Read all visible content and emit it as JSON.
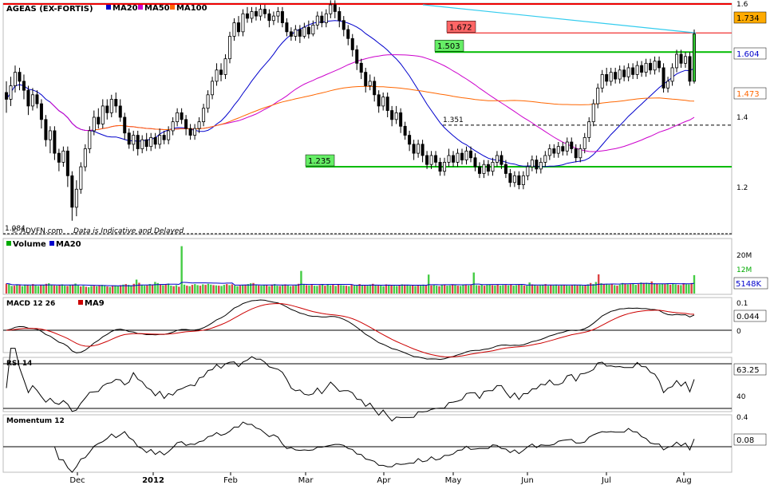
{
  "chart_data": [
    {
      "type": "candlestick",
      "panel": "price",
      "title": "AGEAS (EX-FORTIS)",
      "legend": [
        {
          "name": "MA20",
          "color": "#0000cc"
        },
        {
          "name": "MA50",
          "color": "#cc00cc"
        },
        {
          "name": "MA100",
          "color": "#ff6600"
        }
      ],
      "ylim": [
        0.99,
        1.6
      ],
      "yticks": [
        "1.6",
        "1.4",
        "1.2"
      ],
      "xticks": [
        "Dec",
        "2012",
        "Feb",
        "Mar",
        "Apr",
        "May",
        "Jun",
        "Jul",
        "Aug"
      ],
      "low_label": "1.084",
      "last_price": {
        "value": "1.734",
        "color": "#ffaa00"
      },
      "ma20_value": {
        "value": "1.604",
        "color": "#0000cc"
      },
      "ma100_value": {
        "value": "1.473",
        "color": "#ff6600"
      },
      "levels": [
        {
          "label": "1.672",
          "value": 1.548,
          "style": "red"
        },
        {
          "label": "1.503",
          "value": 1.478,
          "style": "green"
        },
        {
          "label": "1.235",
          "value": 1.283,
          "style": "green"
        },
        {
          "label": "1.351",
          "value": 1.335,
          "style": "dashed"
        }
      ],
      "trendline": {
        "from_value": 1.598,
        "to_value": 1.551
      },
      "watermark": "© ADVFN.com",
      "note": "Data is Indicative and Delayed",
      "candles": [
        [
          0.61,
          0.58,
          0.66,
          0.52
        ],
        [
          0.58,
          0.64,
          0.68,
          0.55
        ],
        [
          0.64,
          0.7,
          0.73,
          0.61
        ],
        [
          0.7,
          0.66,
          0.72,
          0.62
        ],
        [
          0.66,
          0.62,
          0.69,
          0.58
        ],
        [
          0.62,
          0.55,
          0.64,
          0.51
        ],
        [
          0.55,
          0.6,
          0.63,
          0.53
        ],
        [
          0.6,
          0.56,
          0.62,
          0.54
        ],
        [
          0.56,
          0.49,
          0.58,
          0.45
        ],
        [
          0.49,
          0.4,
          0.51,
          0.37
        ],
        [
          0.4,
          0.44,
          0.46,
          0.34
        ],
        [
          0.44,
          0.34,
          0.46,
          0.31
        ],
        [
          0.34,
          0.3,
          0.36,
          0.26
        ],
        [
          0.3,
          0.35,
          0.37,
          0.28
        ],
        [
          0.35,
          0.24,
          0.37,
          0.19
        ],
        [
          0.24,
          0.1,
          0.26,
          0.04
        ],
        [
          0.1,
          0.18,
          0.22,
          0.06
        ],
        [
          0.18,
          0.28,
          0.3,
          0.16
        ],
        [
          0.28,
          0.36,
          0.38,
          0.26
        ],
        [
          0.36,
          0.44,
          0.46,
          0.34
        ],
        [
          0.44,
          0.5,
          0.53,
          0.42
        ],
        [
          0.5,
          0.47,
          0.54,
          0.45
        ],
        [
          0.47,
          0.55,
          0.58,
          0.45
        ],
        [
          0.55,
          0.52,
          0.58,
          0.49
        ],
        [
          0.52,
          0.58,
          0.6,
          0.5
        ],
        [
          0.58,
          0.55,
          0.61,
          0.52
        ],
        [
          0.55,
          0.5,
          0.58,
          0.48
        ],
        [
          0.5,
          0.43,
          0.52,
          0.4
        ],
        [
          0.43,
          0.38,
          0.45,
          0.36
        ],
        [
          0.38,
          0.42,
          0.44,
          0.35
        ],
        [
          0.42,
          0.36,
          0.44,
          0.33
        ],
        [
          0.36,
          0.4,
          0.42,
          0.34
        ],
        [
          0.4,
          0.37,
          0.43,
          0.35
        ],
        [
          0.37,
          0.41,
          0.43,
          0.35
        ],
        [
          0.41,
          0.38,
          0.43,
          0.36
        ],
        [
          0.38,
          0.42,
          0.45,
          0.36
        ],
        [
          0.42,
          0.4,
          0.44,
          0.38
        ],
        [
          0.4,
          0.44,
          0.46,
          0.38
        ],
        [
          0.44,
          0.48,
          0.5,
          0.42
        ],
        [
          0.48,
          0.52,
          0.54,
          0.46
        ],
        [
          0.52,
          0.49,
          0.54,
          0.47
        ],
        [
          0.49,
          0.45,
          0.51,
          0.42
        ],
        [
          0.45,
          0.42,
          0.47,
          0.4
        ],
        [
          0.42,
          0.45,
          0.47,
          0.4
        ],
        [
          0.45,
          0.48,
          0.5,
          0.43
        ],
        [
          0.48,
          0.54,
          0.56,
          0.46
        ],
        [
          0.54,
          0.6,
          0.62,
          0.52
        ],
        [
          0.6,
          0.66,
          0.68,
          0.58
        ],
        [
          0.66,
          0.71,
          0.74,
          0.64
        ],
        [
          0.71,
          0.69,
          0.74,
          0.66
        ],
        [
          0.69,
          0.76,
          0.78,
          0.67
        ],
        [
          0.76,
          0.86,
          0.88,
          0.74
        ],
        [
          0.86,
          0.92,
          0.94,
          0.84
        ],
        [
          0.92,
          0.88,
          0.95,
          0.86
        ],
        [
          0.88,
          0.96,
          0.98,
          0.86
        ],
        [
          0.96,
          0.94,
          0.99,
          0.92
        ],
        [
          0.94,
          0.97,
          0.99,
          0.92
        ],
        [
          0.97,
          0.95,
          0.99,
          0.93
        ],
        [
          0.95,
          0.98,
          1.0,
          0.93
        ],
        [
          0.98,
          0.96,
          1.0,
          0.94
        ],
        [
          0.96,
          0.93,
          0.98,
          0.9
        ],
        [
          0.93,
          0.95,
          0.97,
          0.91
        ],
        [
          0.95,
          0.97,
          0.99,
          0.92
        ],
        [
          0.97,
          0.92,
          0.99,
          0.9
        ],
        [
          0.92,
          0.88,
          0.94,
          0.86
        ],
        [
          0.88,
          0.86,
          0.9,
          0.84
        ],
        [
          0.86,
          0.89,
          0.91,
          0.84
        ],
        [
          0.89,
          0.86,
          0.91,
          0.83
        ],
        [
          0.86,
          0.9,
          0.92,
          0.85
        ],
        [
          0.9,
          0.87,
          0.93,
          0.85
        ],
        [
          0.87,
          0.91,
          0.93,
          0.86
        ],
        [
          0.91,
          0.95,
          0.97,
          0.89
        ],
        [
          0.95,
          0.92,
          0.97,
          0.9
        ],
        [
          0.92,
          0.96,
          0.98,
          0.9
        ],
        [
          0.96,
          1.0,
          1.02,
          0.94
        ],
        [
          1.0,
          0.97,
          1.02,
          0.94
        ],
        [
          0.97,
          0.93,
          0.99,
          0.9
        ],
        [
          0.93,
          0.89,
          0.95,
          0.86
        ],
        [
          0.89,
          0.85,
          0.91,
          0.82
        ],
        [
          0.85,
          0.8,
          0.87,
          0.77
        ],
        [
          0.8,
          0.74,
          0.82,
          0.71
        ],
        [
          0.74,
          0.7,
          0.76,
          0.67
        ],
        [
          0.7,
          0.64,
          0.72,
          0.61
        ],
        [
          0.64,
          0.66,
          0.69,
          0.62
        ],
        [
          0.66,
          0.6,
          0.68,
          0.57
        ],
        [
          0.6,
          0.55,
          0.62,
          0.52
        ],
        [
          0.55,
          0.59,
          0.61,
          0.53
        ],
        [
          0.59,
          0.53,
          0.61,
          0.5
        ],
        [
          0.53,
          0.49,
          0.55,
          0.46
        ],
        [
          0.49,
          0.52,
          0.55,
          0.47
        ],
        [
          0.52,
          0.46,
          0.54,
          0.43
        ],
        [
          0.46,
          0.42,
          0.48,
          0.4
        ],
        [
          0.42,
          0.38,
          0.44,
          0.35
        ],
        [
          0.38,
          0.34,
          0.4,
          0.31
        ],
        [
          0.34,
          0.38,
          0.4,
          0.32
        ],
        [
          0.38,
          0.33,
          0.4,
          0.3
        ],
        [
          0.33,
          0.29,
          0.35,
          0.27
        ],
        [
          0.29,
          0.33,
          0.35,
          0.27
        ],
        [
          0.33,
          0.3,
          0.35,
          0.28
        ],
        [
          0.3,
          0.26,
          0.32,
          0.24
        ],
        [
          0.26,
          0.3,
          0.32,
          0.24
        ],
        [
          0.3,
          0.33,
          0.36,
          0.28
        ],
        [
          0.33,
          0.3,
          0.35,
          0.28
        ],
        [
          0.3,
          0.34,
          0.36,
          0.28
        ],
        [
          0.34,
          0.31,
          0.36,
          0.29
        ],
        [
          0.31,
          0.35,
          0.37,
          0.29
        ],
        [
          0.35,
          0.32,
          0.37,
          0.3
        ],
        [
          0.32,
          0.28,
          0.34,
          0.26
        ],
        [
          0.28,
          0.25,
          0.3,
          0.23
        ],
        [
          0.25,
          0.29,
          0.31,
          0.23
        ],
        [
          0.29,
          0.26,
          0.31,
          0.24
        ],
        [
          0.26,
          0.3,
          0.32,
          0.24
        ],
        [
          0.3,
          0.33,
          0.35,
          0.28
        ],
        [
          0.33,
          0.29,
          0.35,
          0.27
        ],
        [
          0.29,
          0.25,
          0.31,
          0.23
        ],
        [
          0.25,
          0.21,
          0.27,
          0.19
        ],
        [
          0.21,
          0.24,
          0.26,
          0.19
        ],
        [
          0.24,
          0.2,
          0.26,
          0.18
        ],
        [
          0.2,
          0.24,
          0.26,
          0.18
        ],
        [
          0.24,
          0.28,
          0.3,
          0.22
        ],
        [
          0.28,
          0.31,
          0.33,
          0.26
        ],
        [
          0.31,
          0.27,
          0.33,
          0.25
        ],
        [
          0.27,
          0.3,
          0.32,
          0.25
        ],
        [
          0.3,
          0.33,
          0.35,
          0.28
        ],
        [
          0.33,
          0.36,
          0.38,
          0.31
        ],
        [
          0.36,
          0.34,
          0.38,
          0.32
        ],
        [
          0.34,
          0.37,
          0.39,
          0.32
        ],
        [
          0.37,
          0.35,
          0.39,
          0.33
        ],
        [
          0.35,
          0.39,
          0.41,
          0.33
        ],
        [
          0.39,
          0.36,
          0.41,
          0.34
        ],
        [
          0.36,
          0.32,
          0.38,
          0.3
        ],
        [
          0.32,
          0.36,
          0.38,
          0.3
        ],
        [
          0.36,
          0.41,
          0.43,
          0.34
        ],
        [
          0.41,
          0.48,
          0.5,
          0.39
        ],
        [
          0.48,
          0.56,
          0.58,
          0.46
        ],
        [
          0.56,
          0.63,
          0.65,
          0.54
        ],
        [
          0.63,
          0.69,
          0.71,
          0.61
        ],
        [
          0.69,
          0.66,
          0.72,
          0.64
        ],
        [
          0.66,
          0.7,
          0.72,
          0.64
        ],
        [
          0.7,
          0.67,
          0.72,
          0.65
        ],
        [
          0.67,
          0.71,
          0.73,
          0.65
        ],
        [
          0.71,
          0.68,
          0.73,
          0.66
        ],
        [
          0.68,
          0.72,
          0.74,
          0.66
        ],
        [
          0.72,
          0.69,
          0.74,
          0.67
        ],
        [
          0.69,
          0.73,
          0.75,
          0.67
        ],
        [
          0.73,
          0.7,
          0.75,
          0.68
        ],
        [
          0.7,
          0.74,
          0.76,
          0.68
        ],
        [
          0.74,
          0.71,
          0.76,
          0.69
        ],
        [
          0.71,
          0.75,
          0.77,
          0.69
        ],
        [
          0.75,
          0.72,
          0.77,
          0.7
        ],
        [
          0.72,
          0.63,
          0.74,
          0.61
        ],
        [
          0.63,
          0.66,
          0.68,
          0.61
        ],
        [
          0.66,
          0.72,
          0.74,
          0.64
        ],
        [
          0.72,
          0.78,
          0.8,
          0.7
        ],
        [
          0.78,
          0.74,
          0.8,
          0.72
        ],
        [
          0.74,
          0.77,
          0.79,
          0.72
        ],
        [
          0.77,
          0.66,
          0.79,
          0.64
        ],
        [
          0.66,
          0.87,
          0.89,
          0.65
        ]
      ]
    },
    {
      "type": "bar",
      "panel": "volume",
      "title": "Volume",
      "legend": [
        {
          "name": "Volume",
          "color": "#00aa00"
        },
        {
          "name": "MA20",
          "color": "#0000cc"
        }
      ],
      "ylim": [
        0,
        20
      ],
      "yticks": [
        "20M",
        "12M"
      ],
      "ma_value": "5148K",
      "values": [
        3.8,
        3.6,
        2.9,
        3.0,
        3.5,
        3.2,
        2.8,
        3.4,
        3.3,
        3.0,
        3.6,
        3.1,
        2.9,
        3.3,
        3.2,
        3.7,
        3.9,
        3.4,
        3.1,
        3.0,
        3.3,
        3.5,
        3.0,
        2.9,
        3.2,
        3.4,
        3.8,
        3.1,
        2.7,
        3.0,
        2.6,
        2.4,
        2.9,
        3.0,
        2.8,
        3.1,
        3.3,
        3.0,
        2.7,
        2.5,
        2.9,
        3.1,
        2.8,
        3.2,
        3.4,
        3.6,
        3.3,
        3.1,
        3.7,
        5.3,
        4.1,
        3.2,
        3.0,
        3.1,
        3.6,
        3.4,
        4.4,
        4.0,
        3.5,
        3.2,
        3.6,
        3.8,
        3.0,
        2.8,
        3.2,
        2.6,
        18.0,
        3.4,
        3.0,
        2.8,
        3.3,
        3.6,
        3.2,
        3.0,
        3.5,
        3.3,
        3.7,
        3.4,
        3.2,
        3.1,
        3.0,
        2.9,
        3.3,
        3.6,
        3.2,
        3.5,
        3.1,
        2.8,
        3.0,
        3.2,
        3.4,
        3.6,
        3.9,
        4.0,
        3.2,
        3.1,
        3.0,
        3.3,
        3.2,
        2.8,
        3.4,
        3.6,
        3.0,
        2.9,
        3.2,
        3.5,
        3.1,
        2.8,
        3.0,
        3.3,
        3.7,
        8.6,
        3.5,
        3.2,
        3.1,
        3.3,
        3.0,
        2.9,
        3.2,
        3.4,
        3.0,
        3.6,
        3.1,
        3.3,
        2.9,
        3.5,
        3.2,
        3.1,
        3.0,
        2.8,
        3.4,
        3.0,
        3.2,
        3.6,
        3.3,
        3.1,
        3.0,
        3.4,
        3.7,
        3.2,
        3.1,
        3.0,
        2.8,
        3.5,
        3.3,
        3.1,
        3.0,
        2.9,
        3.2,
        3.5,
        3.4,
        3.3,
        3.0,
        3.1,
        2.9,
        3.2,
        3.0,
        3.4,
        3.2,
        7.2,
        3.1,
        3.3,
        3.0,
        2.8,
        3.2,
        3.4,
        3.0,
        3.1,
        3.5,
        3.3,
        3.0,
        2.9,
        3.2,
        3.4,
        3.1,
        3.3,
        8.0,
        3.2,
        3.1,
        3.4,
        3.0,
        3.3,
        3.5,
        3.2,
        3.1,
        3.4,
        3.0,
        3.2,
        3.3,
        3.1,
        3.5,
        3.0,
        3.2,
        3.4,
        3.3,
        3.1,
        3.0,
        4.2,
        3.5,
        3.2,
        3.0,
        3.1,
        3.3,
        3.6,
        3.0,
        3.2,
        3.1,
        3.4,
        3.0,
        3.2,
        3.3,
        3.1,
        3.0,
        3.2,
        3.4,
        3.1,
        3.3,
        3.0,
        3.2,
        3.5,
        4.0,
        3.6,
        4.4,
        7.3,
        3.9,
        3.5,
        3.7,
        3.4,
        3.6,
        3.2,
        3.0,
        3.4,
        4.0,
        3.8,
        3.5,
        3.6,
        3.9,
        3.3,
        3.6,
        4.2,
        4.0,
        4.1,
        3.8,
        4.6,
        3.9,
        3.7,
        3.5,
        3.8,
        3.6,
        3.9,
        3.4,
        3.7,
        3.5,
        3.3,
        3.2,
        3.9,
        3.6,
        3.5,
        4.0,
        7.0
      ]
    },
    {
      "type": "line",
      "panel": "macd",
      "title": "MACD 12 26",
      "legend": [
        {
          "name": "MA9",
          "color": "#cc0000"
        }
      ],
      "ylim": [
        -0.045,
        0.1
      ],
      "yticks": [
        "0.1",
        "0"
      ],
      "last_value": "0.044"
    },
    {
      "type": "line",
      "panel": "rsi",
      "title": "RSI 14",
      "ylim": [
        30,
        80
      ],
      "yticks": [
        "40"
      ],
      "last_value": "63.25"
    },
    {
      "type": "line",
      "panel": "momentum",
      "title": "Momentum 12",
      "ylim": [
        -0.1,
        0.4
      ],
      "yticks": [
        "0.4"
      ],
      "last_value": "0.08"
    }
  ]
}
